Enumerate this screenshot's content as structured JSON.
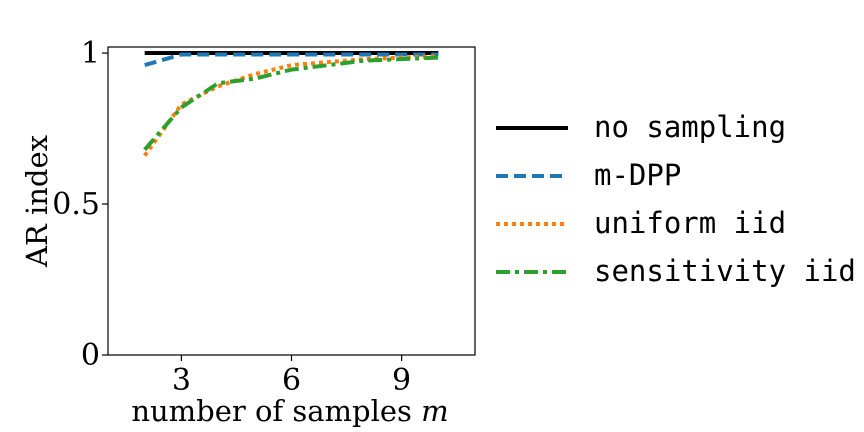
{
  "chart_data": {
    "type": "line",
    "xlabel": "number of samples m",
    "ylabel": "AR index",
    "xlim": [
      1,
      11
    ],
    "ylim": [
      0,
      1.02
    ],
    "xticks": [
      3,
      6,
      9
    ],
    "yticks": [
      0,
      0.5,
      1
    ],
    "ytick_labels": [
      "0",
      "0.5",
      "1"
    ],
    "grid": false,
    "legend_position": "right, outside plot",
    "x": [
      2,
      3,
      4,
      5,
      6,
      7,
      8,
      9,
      10
    ],
    "series": [
      {
        "name": "no sampling",
        "color": "#000000",
        "dash": "solid",
        "values": [
          1.0,
          1.0,
          1.0,
          1.0,
          1.0,
          1.0,
          1.0,
          1.0,
          1.0
        ]
      },
      {
        "name": "m-DPP",
        "color": "#1f77b4",
        "dash": "dashed",
        "values": [
          0.96,
          0.995,
          0.995,
          0.995,
          0.995,
          0.995,
          0.995,
          0.995,
          0.995
        ]
      },
      {
        "name": "uniform iid",
        "color": "#ff7f0e",
        "dash": "dotted",
        "values": [
          0.66,
          0.83,
          0.89,
          0.93,
          0.96,
          0.97,
          0.98,
          0.985,
          0.99
        ]
      },
      {
        "name": "sensitivity iid",
        "color": "#2ca02c",
        "dash": "dashdot",
        "values": [
          0.68,
          0.82,
          0.9,
          0.915,
          0.945,
          0.96,
          0.975,
          0.98,
          0.985
        ]
      }
    ]
  }
}
